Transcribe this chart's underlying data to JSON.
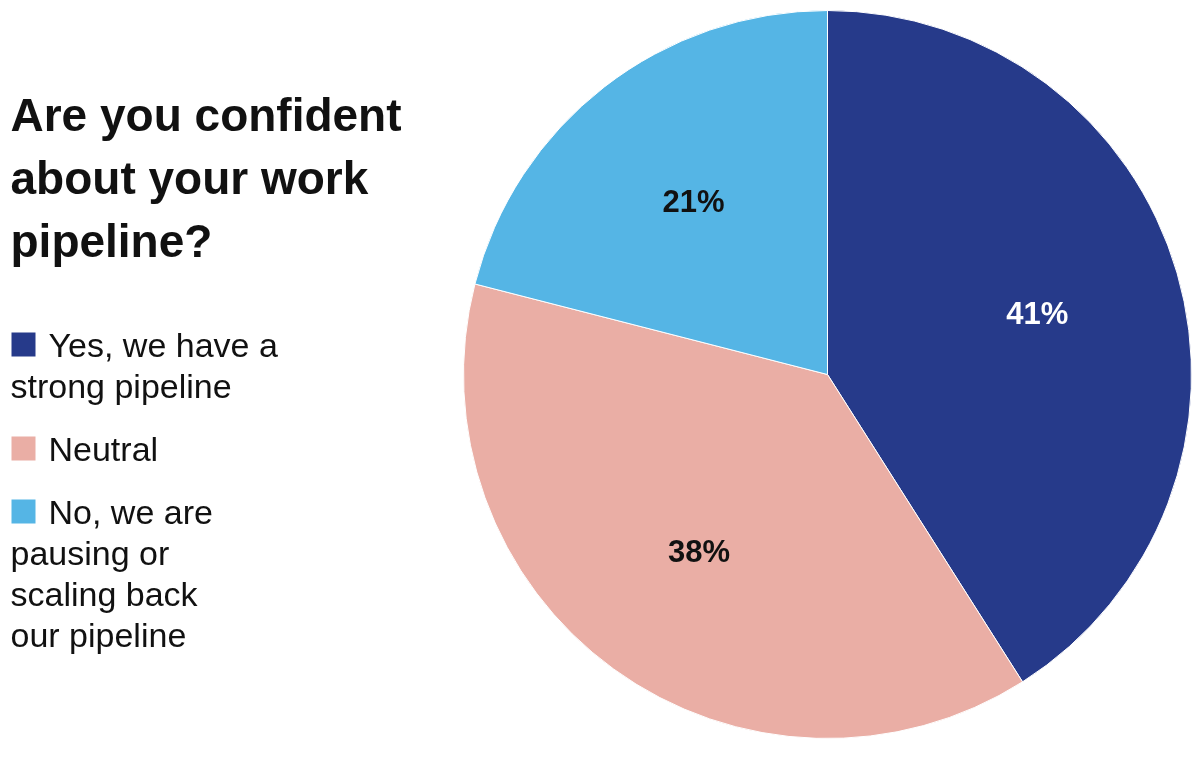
{
  "chart_data": {
    "type": "pie",
    "title": "Are you confident about your work pipeline?",
    "categories": [
      "Yes, we have a strong pipeline",
      "Neutral",
      "No, we are pausing or scaling back our pipeline"
    ],
    "values": [
      41,
      38,
      21
    ],
    "colors": [
      "#263a8a",
      "#eaaea5",
      "#55b5e5"
    ],
    "value_labels": [
      "41%",
      "38%",
      "21%"
    ],
    "legend": "left"
  }
}
